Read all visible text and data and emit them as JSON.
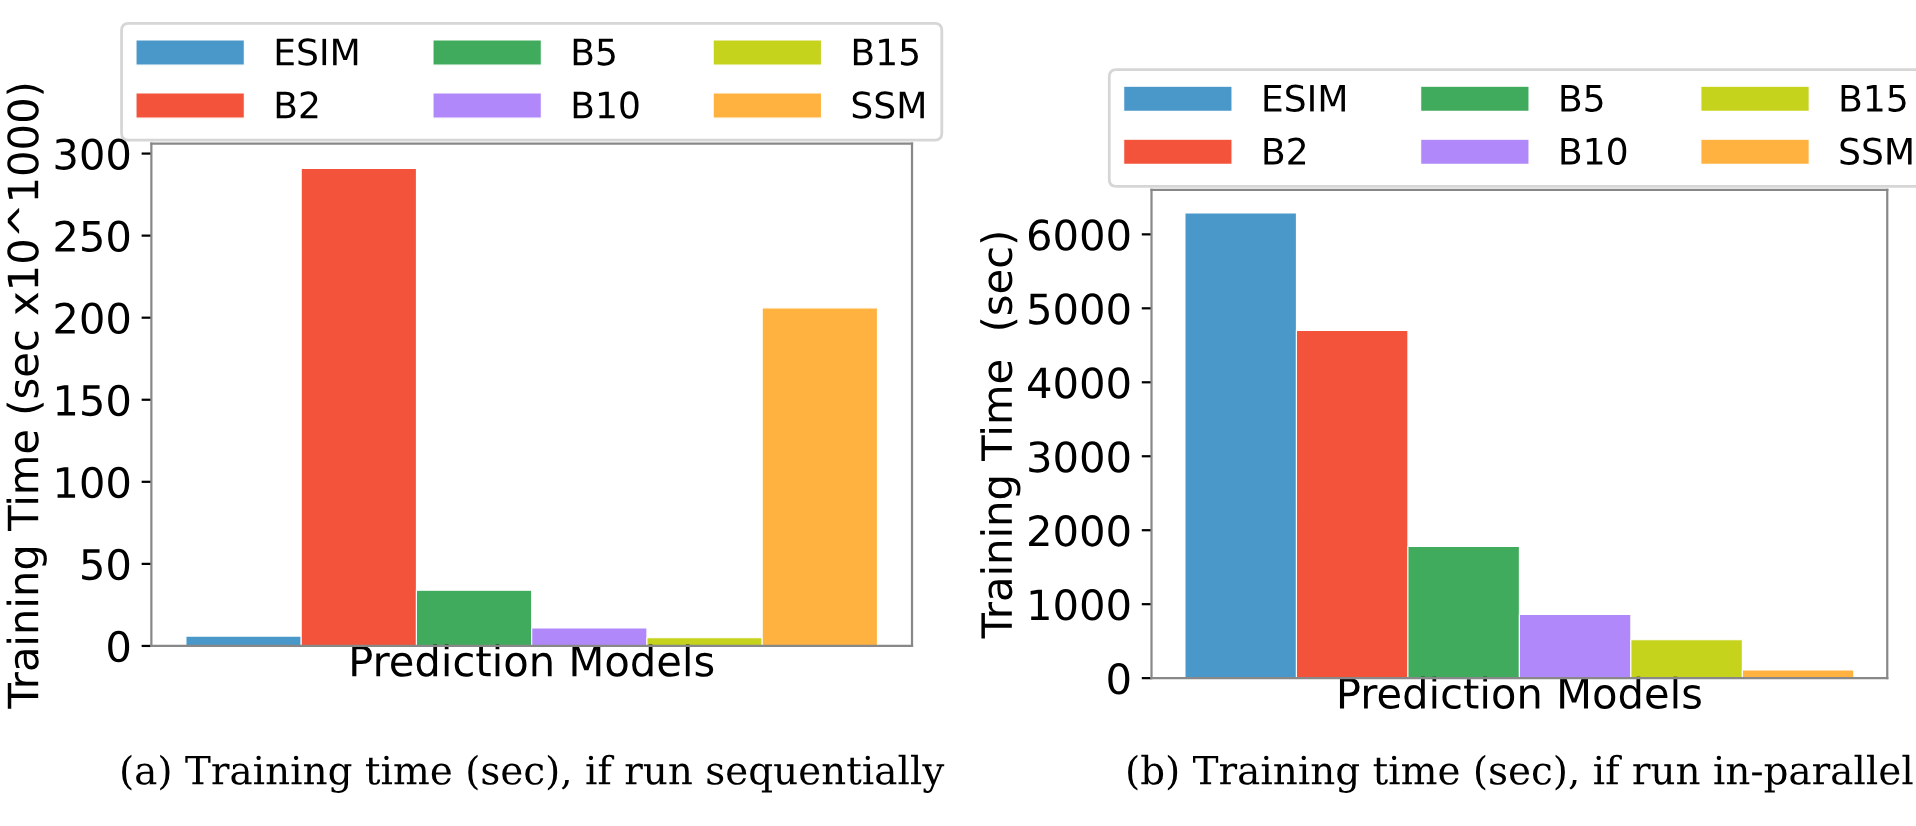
{
  "chart_data": [
    {
      "type": "bar",
      "title": "(a) Training time (sec), if run sequentially",
      "xlabel": "Prediction Models",
      "ylabel": "Training Time (sec x10^1000)",
      "categories": [
        null
      ],
      "ylim": [
        0,
        306
      ],
      "yticks": [
        0,
        50,
        100,
        150,
        200,
        250,
        300
      ],
      "legend": "top",
      "series": [
        {
          "name": "ESIM",
          "color": "#4a98c9",
          "values": [
            6
          ]
        },
        {
          "name": "B2",
          "color": "#f3533a",
          "values": [
            291
          ]
        },
        {
          "name": "B5",
          "color": "#41ab5d",
          "values": [
            34
          ]
        },
        {
          "name": "B10",
          "color": "#b088f9",
          "values": [
            11
          ]
        },
        {
          "name": "B15",
          "color": "#c5d31c",
          "values": [
            5
          ]
        },
        {
          "name": "SSM",
          "color": "#ffb23f",
          "values": [
            206
          ]
        }
      ]
    },
    {
      "type": "bar",
      "title": "(b) Training time (sec), if run in-parallel",
      "xlabel": "Prediction Models",
      "ylabel": "Training Time  (sec)",
      "categories": [
        null
      ],
      "ylim": [
        0,
        6600
      ],
      "yticks": [
        0,
        1000,
        2000,
        3000,
        4000,
        5000,
        6000
      ],
      "legend": "top",
      "series": [
        {
          "name": "ESIM",
          "color": "#4a98c9",
          "values": [
            6290
          ]
        },
        {
          "name": "B2",
          "color": "#f3533a",
          "values": [
            4700
          ]
        },
        {
          "name": "B5",
          "color": "#41ab5d",
          "values": [
            1780
          ]
        },
        {
          "name": "B10",
          "color": "#b088f9",
          "values": [
            860
          ]
        },
        {
          "name": "B15",
          "color": "#c5d31c",
          "values": [
            520
          ]
        },
        {
          "name": "SSM",
          "color": "#ffb23f",
          "values": [
            110
          ]
        }
      ]
    }
  ]
}
